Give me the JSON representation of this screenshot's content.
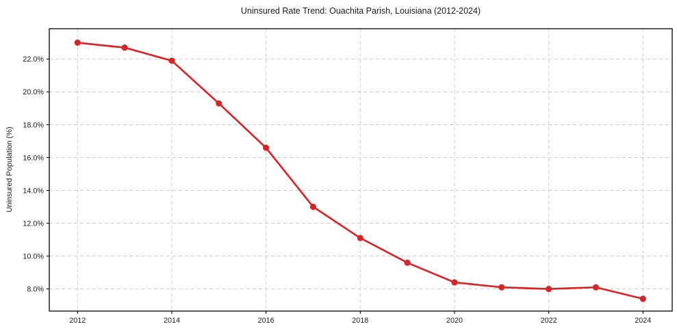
{
  "chart_data": {
    "type": "line",
    "title": "Uninsured Rate Trend: Ouachita Parish, Louisiana (2012-2024)",
    "xlabel": "",
    "ylabel": "Uninsured Population (%)",
    "x": [
      2012,
      2013,
      2014,
      2015,
      2016,
      2017,
      2018,
      2019,
      2020,
      2021,
      2022,
      2023,
      2024
    ],
    "values": [
      23.0,
      22.7,
      21.9,
      19.3,
      16.6,
      13.0,
      11.1,
      9.6,
      8.4,
      8.1,
      8.0,
      8.1,
      7.4
    ],
    "xticks": [
      2012,
      2014,
      2016,
      2018,
      2020,
      2022,
      2024
    ],
    "xtick_labels": [
      "2012",
      "2014",
      "2016",
      "2018",
      "2020",
      "2022",
      "2024"
    ],
    "yticks": [
      8,
      10,
      12,
      14,
      16,
      18,
      20,
      22
    ],
    "ytick_labels": [
      "8.0%",
      "10.0%",
      "12.0%",
      "14.0%",
      "16.0%",
      "18.0%",
      "20.0%",
      "22.0%"
    ],
    "xlim": [
      2011.4,
      2024.62
    ],
    "ylim": [
      6.65,
      23.85
    ],
    "grid": true,
    "grid_style": "dashed",
    "legend": false,
    "colors": {
      "line": "#d62728",
      "marker": "#d62728",
      "grid": "#cccccc",
      "spine": "#000000",
      "text": "#1a1a1a",
      "background": "#ffffff"
    }
  }
}
